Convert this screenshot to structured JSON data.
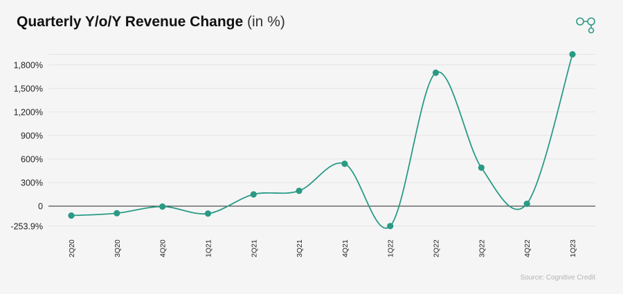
{
  "header": {
    "title_bold": "Quarterly Y/o/Y Revenue Change",
    "title_unit": "(in %)"
  },
  "footer": {
    "source": "Source: Cognitive Credit"
  },
  "logo": {
    "icon": "cognitive-credit-logo-icon"
  },
  "colors": {
    "series": "#2a9a85",
    "grid": "#e4e4e4",
    "zero_line": "#222222",
    "text": "#222222"
  },
  "chart_data": {
    "type": "line",
    "smooth": true,
    "title": "Quarterly Y/o/Y Revenue Change (in %)",
    "categories": [
      "2Q20",
      "3Q20",
      "4Q20",
      "1Q21",
      "2Q21",
      "3Q21",
      "4Q21",
      "1Q22",
      "2Q22",
      "3Q22",
      "4Q22",
      "1Q23"
    ],
    "series": [
      {
        "values": [
          -120,
          -90,
          -5,
          -95,
          150,
          195,
          540,
          -253.9,
          1700,
          490,
          30,
          1935
        ]
      }
    ],
    "ylim": [
      -253.9,
      1935
    ],
    "yticks": [
      {
        "value": 1800,
        "label": "1,800%"
      },
      {
        "value": 1500,
        "label": "1,500%"
      },
      {
        "value": 1200,
        "label": "1,200%"
      },
      {
        "value": 900,
        "label": "900%"
      },
      {
        "value": 600,
        "label": "600%"
      },
      {
        "value": 300,
        "label": "300%"
      },
      {
        "value": 0,
        "label": "0"
      },
      {
        "value": -253.9,
        "label": "-253.9%"
      }
    ],
    "grid": true,
    "legend": "none"
  }
}
